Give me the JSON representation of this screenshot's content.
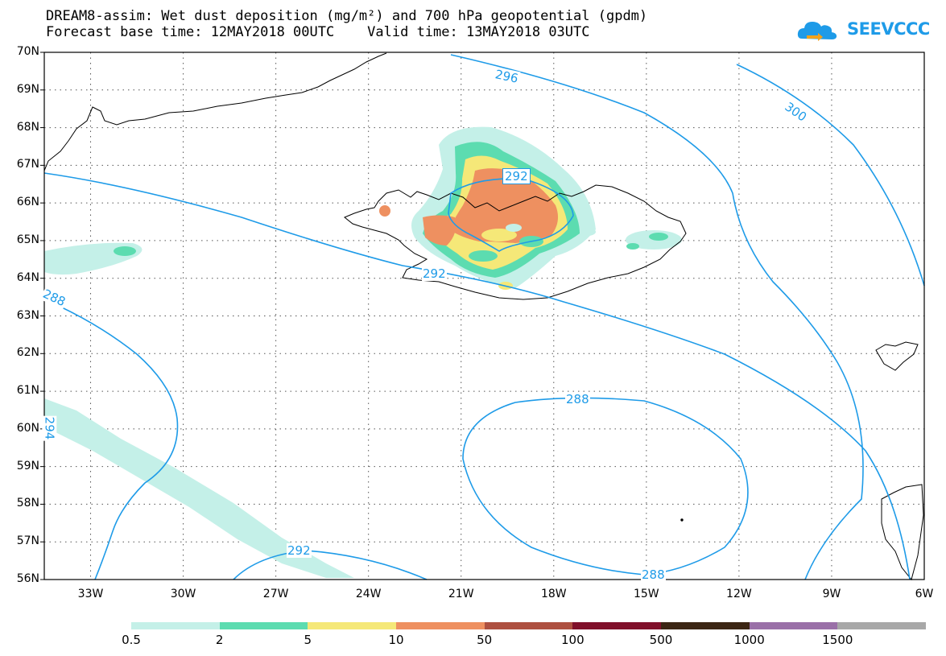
{
  "title_line1": "DREAM8-assim: Wet dust deposition (mg/m²) and 700 hPa geopotential (gpdm)",
  "title_line2": "Forecast base time: 12MAY2018 00UTC    Valid time: 13MAY2018 03UTC",
  "logo_text": "SEEVCCC",
  "lat_labels": [
    "70N",
    "69N",
    "68N",
    "67N",
    "66N",
    "65N",
    "64N",
    "63N",
    "62N",
    "61N",
    "60N",
    "59N",
    "58N",
    "57N",
    "56N"
  ],
  "lon_labels": [
    "33W",
    "30W",
    "27W",
    "24W",
    "21W",
    "18W",
    "15W",
    "12W",
    "9W",
    "6W"
  ],
  "contour_labels": [
    "296",
    "300",
    "292",
    "292",
    "288",
    "288",
    "288",
    "292",
    "294"
  ],
  "legend": {
    "labels": [
      "0.5",
      "2",
      "5",
      "10",
      "50",
      "100",
      "500",
      "1000",
      "1500"
    ],
    "colors": [
      "#c4f0e8",
      "#5cdcb0",
      "#f5e878",
      "#ee9060",
      "#ae5040",
      "#80102a",
      "#3c2614",
      "#9a70a8",
      "#a8a8a8"
    ]
  },
  "colors": {
    "contour": "#1e9be8",
    "coast": "#000000",
    "grid": "#555555"
  }
}
